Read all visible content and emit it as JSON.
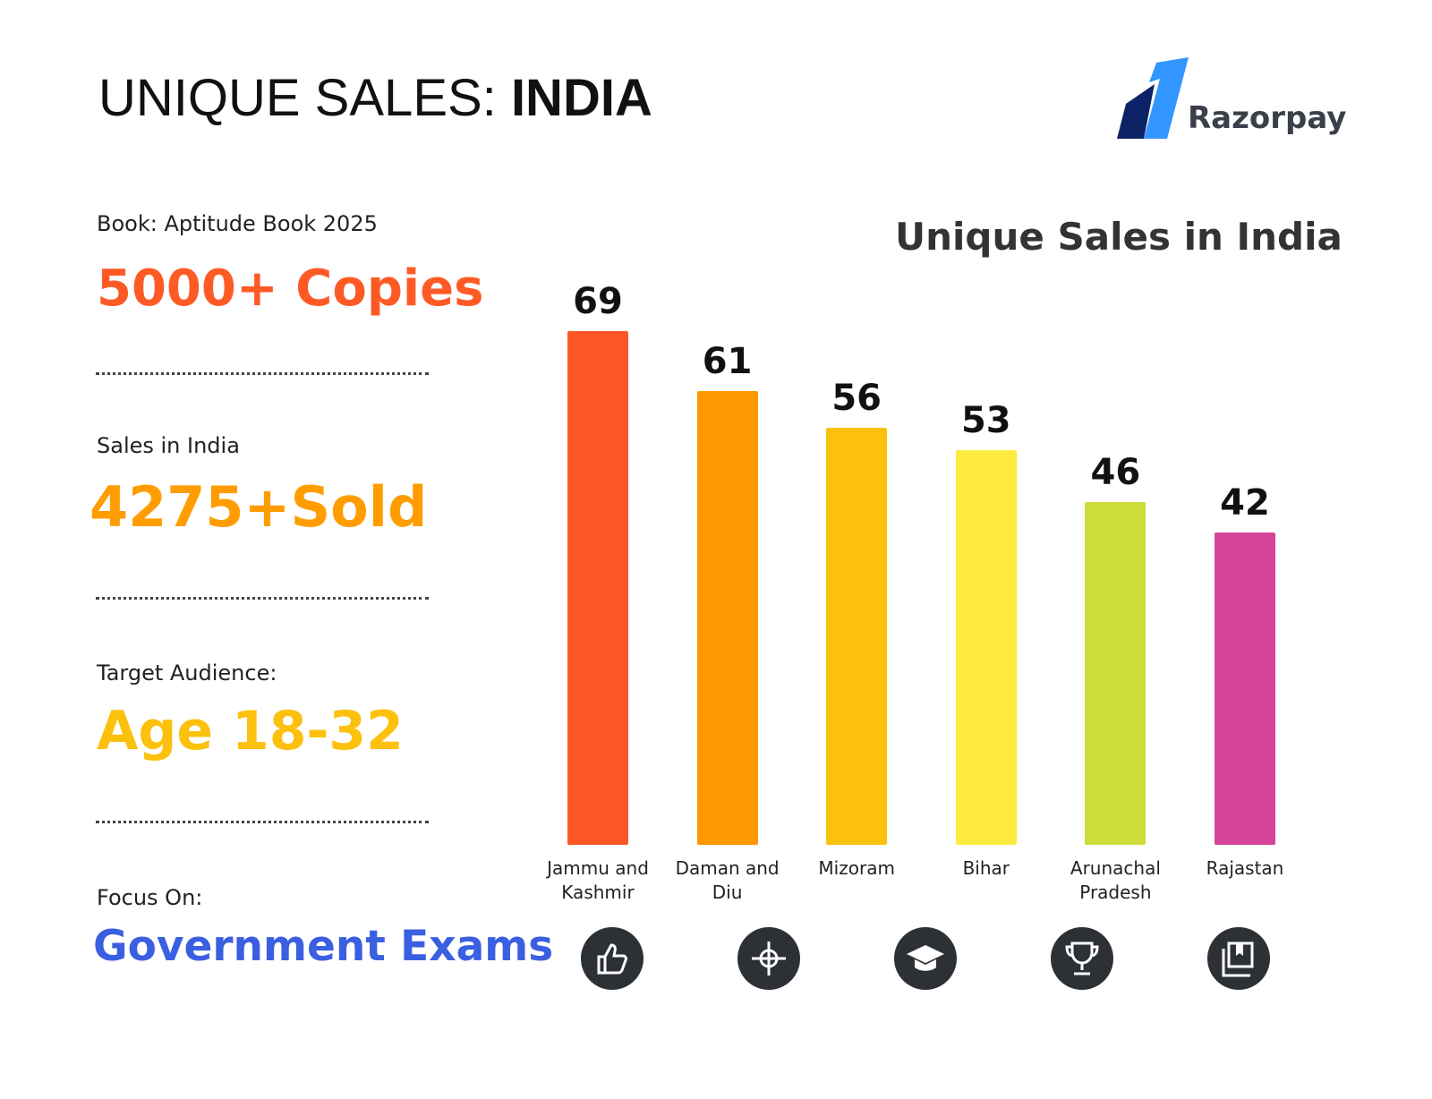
{
  "header": {
    "title": "UNIQUE SALES:",
    "title_bold": "INDIA",
    "brand": "Razorpay"
  },
  "stats": [
    {
      "label": "Book: Aptitude Book 2025",
      "value": "5000+ Copies"
    },
    {
      "label": "Sales in India",
      "value": "4275+Sold"
    },
    {
      "label": "Target Audience:",
      "value": "Age 18-32"
    },
    {
      "label": "Focus On:",
      "value": "Government Exams"
    }
  ],
  "chart_data": {
    "type": "bar",
    "title": "Unique Sales in India",
    "categories": [
      "Jammu and Kashmir",
      "Daman and Diu",
      "Mizoram",
      "Bihar",
      "Arunachal Pradesh",
      "Rajastan"
    ],
    "values": [
      69,
      61,
      56,
      53,
      46,
      42
    ],
    "colors": [
      "#fe5726",
      "#ff9700",
      "#fcc10d",
      "#fdeb3d",
      "#cddc39",
      "#d5449a"
    ]
  }
}
